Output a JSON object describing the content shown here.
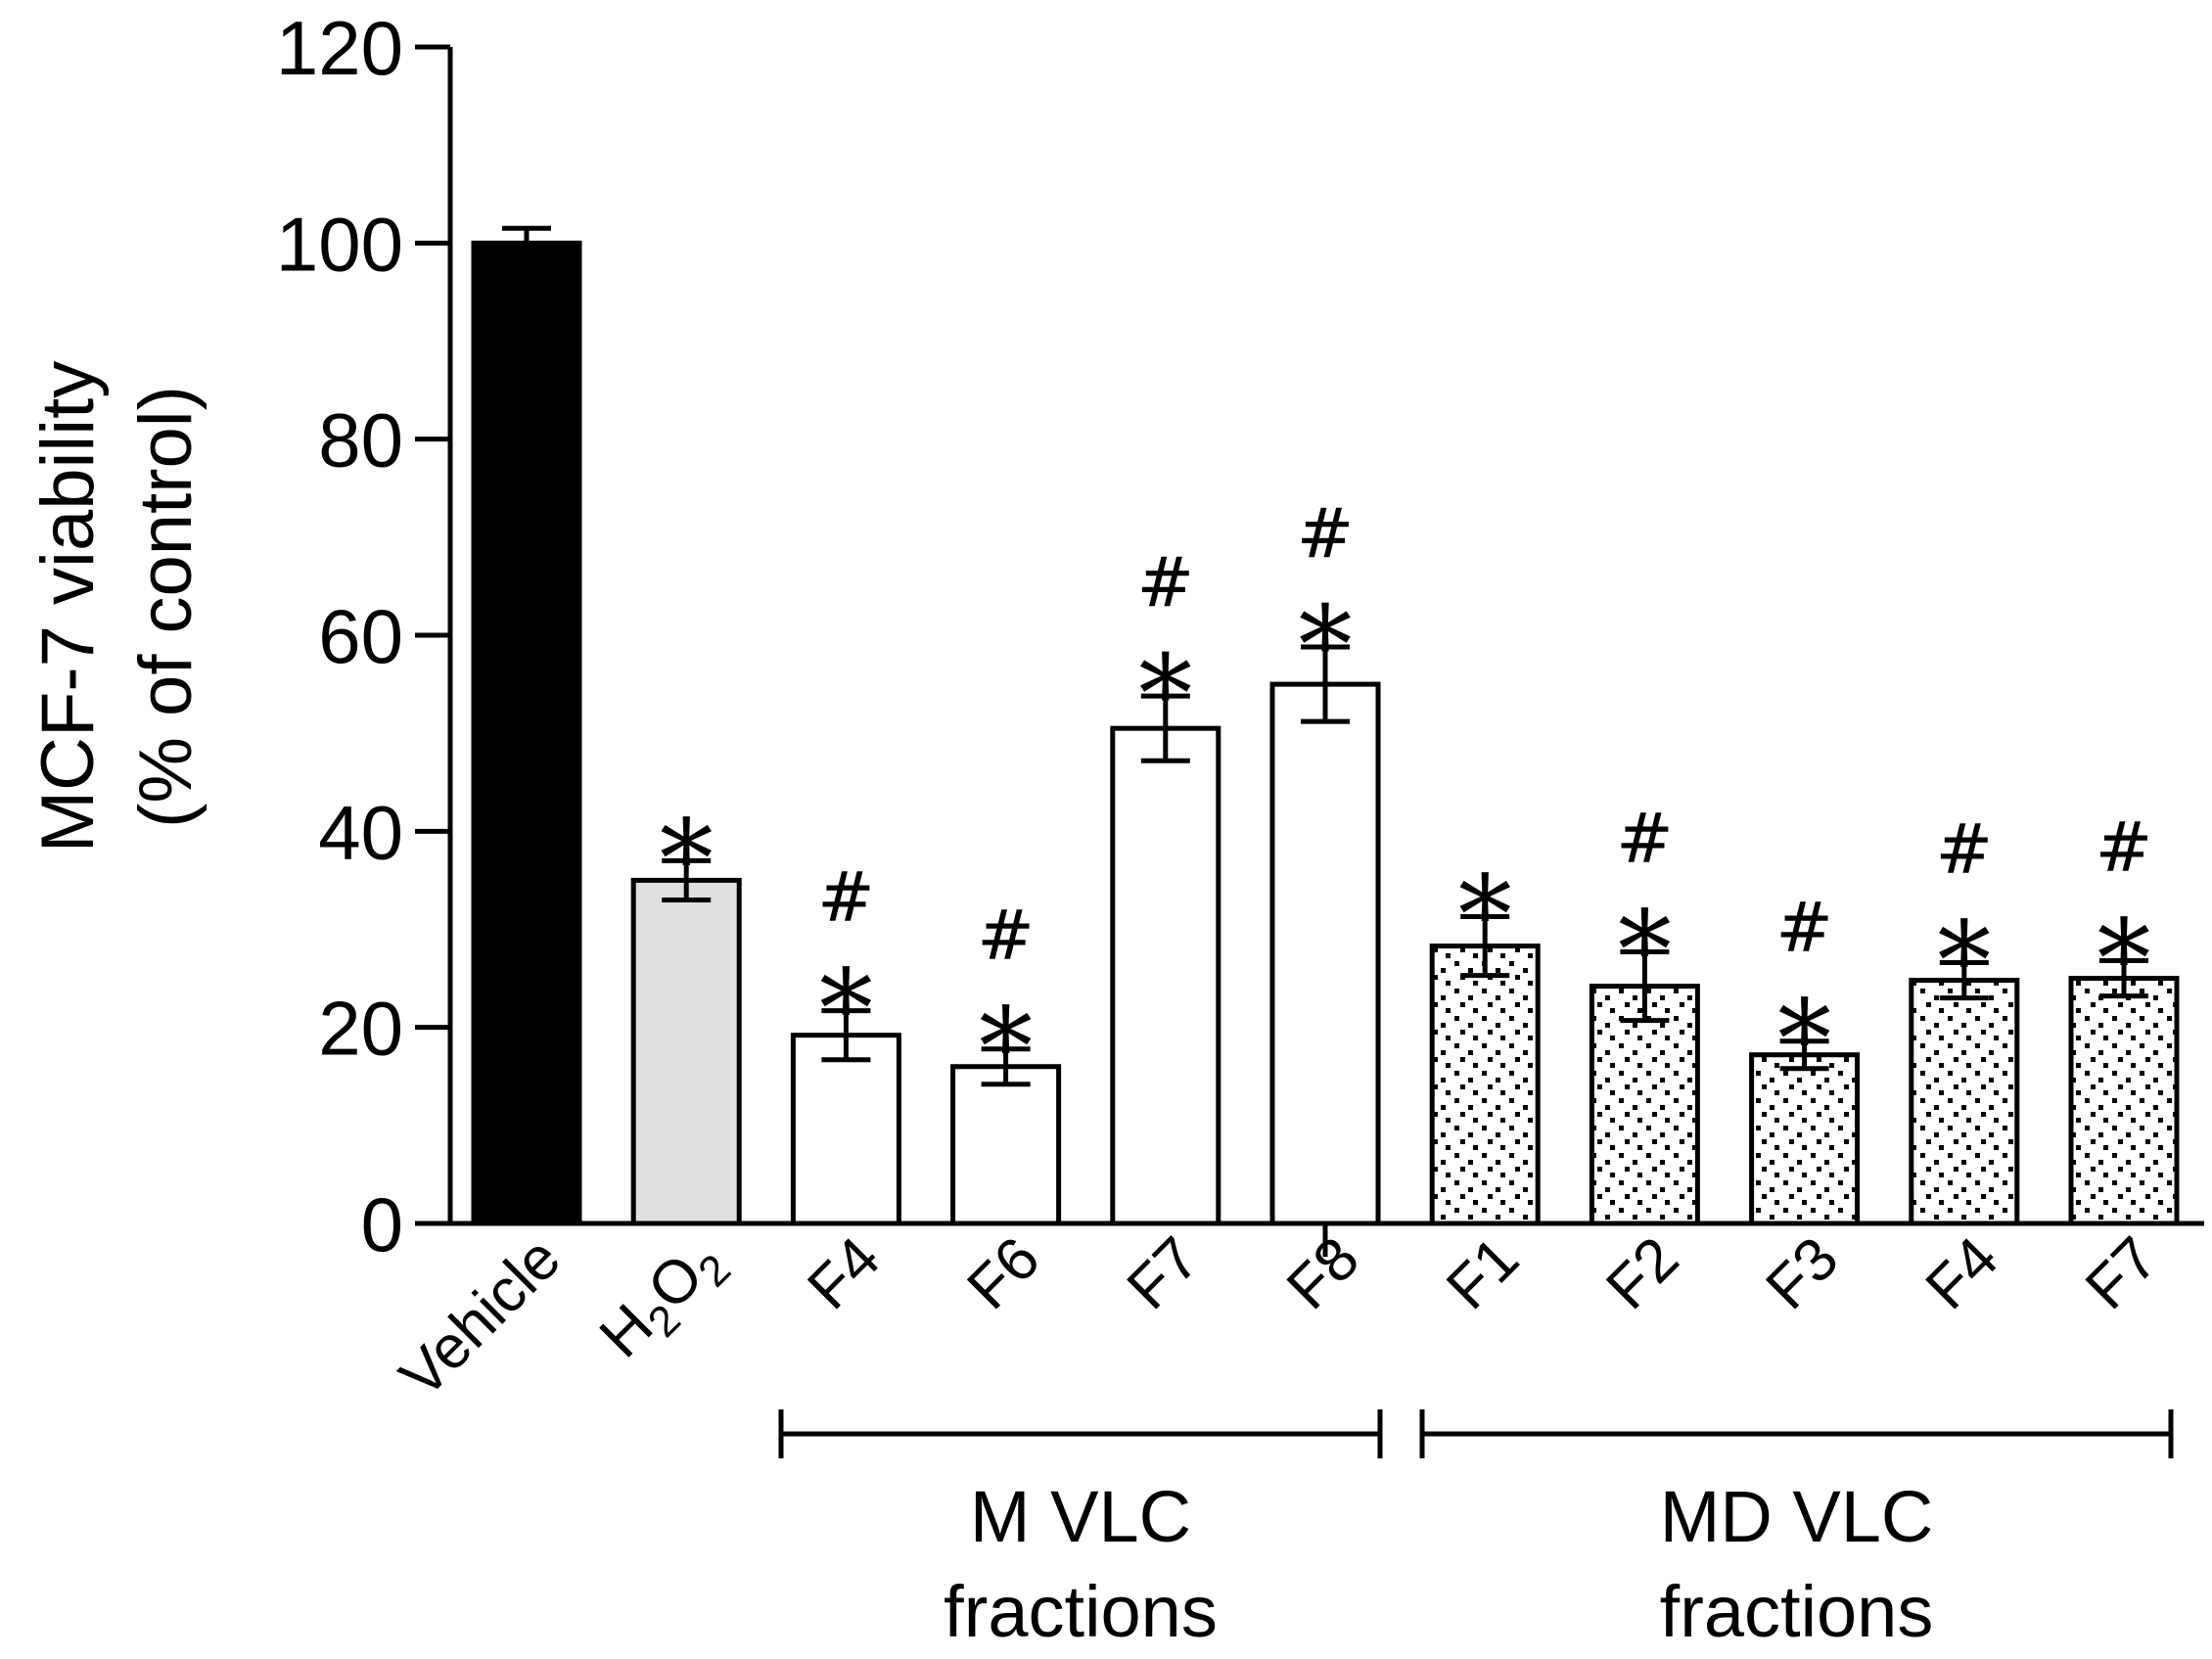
{
  "chart_data": {
    "type": "bar",
    "title": "",
    "xlabel": "",
    "ylabel": "MCF-7 viability (% of control)",
    "ylabel_lines": [
      "MCF-7 viability",
      "(% of control)"
    ],
    "ylim": [
      0,
      120
    ],
    "yticks": [
      0,
      20,
      40,
      60,
      80,
      100,
      120
    ],
    "categories": [
      "Vehicle",
      "H2O2",
      "F4",
      "F6",
      "F7",
      "F8",
      "F1",
      "F2",
      "F3",
      "F4",
      "F7"
    ],
    "values": [
      100,
      35,
      19.2,
      16,
      50.5,
      55,
      28.3,
      24.2,
      17.2,
      24.8,
      25
    ],
    "errors": [
      1.5,
      2,
      2.5,
      1.8,
      3.3,
      3.8,
      3,
      3.5,
      1.4,
      1.8,
      1.8
    ],
    "significance_star": [
      false,
      true,
      true,
      true,
      true,
      true,
      true,
      true,
      true,
      true,
      true
    ],
    "significance_hash": [
      false,
      false,
      true,
      true,
      true,
      true,
      false,
      true,
      true,
      true,
      true
    ],
    "star_symbol": "*",
    "hash_symbol": "#",
    "bar_styles": [
      "black",
      "gray",
      "white",
      "white",
      "white",
      "white",
      "dotted",
      "dotted",
      "dotted",
      "dotted",
      "dotted"
    ],
    "groups": [
      {
        "label_line1": "M VLC",
        "label_line2": "fractions",
        "from": 2,
        "to": 5
      },
      {
        "label_line1": "MD VLC",
        "label_line2": "fractions",
        "from": 6,
        "to": 10
      }
    ],
    "colors": {
      "black": "#000000",
      "gray": "#e0e0e0",
      "white": "#ffffff"
    }
  }
}
